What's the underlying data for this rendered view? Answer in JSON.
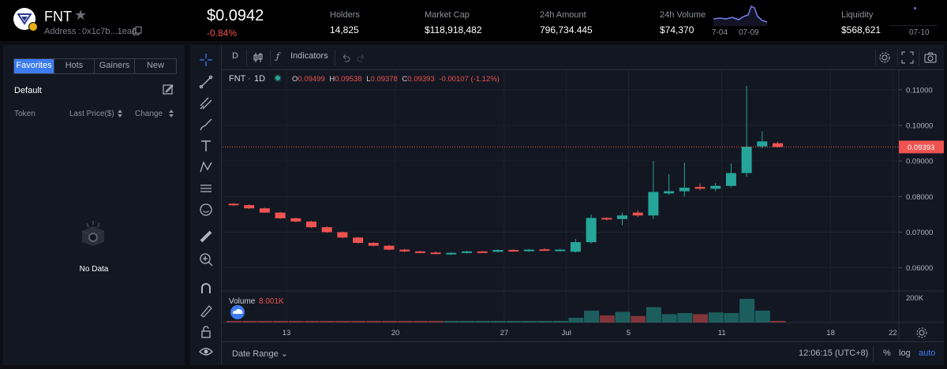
{
  "token": {
    "symbol": "FNT",
    "address_label": "Address :",
    "address": "0x1c7b...1ead",
    "price": "$0.0942",
    "change": "-0.84%"
  },
  "stats": [
    {
      "label": "Holders",
      "value": "14,825"
    },
    {
      "label": "Market Cap",
      "value": "$118,918,482"
    },
    {
      "label": "24h Amount",
      "value": "796,734.445"
    },
    {
      "label": "24h Volume",
      "value": "$74,370"
    },
    {
      "label": "Liquidity",
      "value": "$568,621"
    }
  ],
  "sparkline": {
    "start_date": "7-04",
    "end_date": "07-09"
  },
  "liquidity_date": "07-10",
  "left_panel": {
    "tabs": [
      "Favorites",
      "Hots",
      "Gainers",
      "New"
    ],
    "active_tab": "Favorites",
    "list_name": "Default",
    "columns": [
      "Token",
      "Last Price($)",
      "Change"
    ],
    "empty_text": "No Data"
  },
  "chart_toolbar": {
    "interval": "D",
    "indicators": "Indicators"
  },
  "legend": {
    "symbol": "FNT",
    "interval": "1D",
    "o_label": "O",
    "o": "0.09499",
    "h_label": "H",
    "h": "0.09538",
    "l_label": "L",
    "l": "0.09378",
    "c_label": "C",
    "c": "0.09393",
    "diff": "-0.00107 (-1.12%)"
  },
  "volume_legend": {
    "label": "Volume",
    "value": "8.001K"
  },
  "current_price_tag": "0.09393",
  "bottom": {
    "date_range": "Date Range",
    "time": "12:06:15 (UTC+8)",
    "pct": "%",
    "log": "log",
    "auto": "auto"
  },
  "colors": {
    "up": "#26a69a",
    "down": "#ef5350",
    "accent": "#3d7bf0"
  },
  "chart_data": {
    "type": "candlestick",
    "y_axis_labels": [
      "0.11000",
      "0.10000",
      "0.09000",
      "0.08000",
      "0.07000",
      "0.06000"
    ],
    "y_range": [
      0.0535,
      0.1155
    ],
    "volume_axis_label": "200K",
    "x_axis_labels": [
      {
        "i": 3,
        "label": "13"
      },
      {
        "i": 10,
        "label": "20"
      },
      {
        "i": 17,
        "label": "27"
      },
      {
        "i": 21,
        "label": "Jul"
      },
      {
        "i": 25,
        "label": "5"
      },
      {
        "i": 31,
        "label": "11"
      },
      {
        "i": 38,
        "label": "18"
      },
      {
        "i": 42,
        "label": "22"
      }
    ],
    "candles": [
      {
        "o": 0.078,
        "h": 0.0782,
        "l": 0.0774,
        "c": 0.0776,
        "v": 8
      },
      {
        "o": 0.0776,
        "h": 0.0778,
        "l": 0.0765,
        "c": 0.0767,
        "v": 8
      },
      {
        "o": 0.0767,
        "h": 0.0769,
        "l": 0.0754,
        "c": 0.0755,
        "v": 8
      },
      {
        "o": 0.0755,
        "h": 0.0757,
        "l": 0.0737,
        "c": 0.0739,
        "v": 8
      },
      {
        "o": 0.0739,
        "h": 0.0741,
        "l": 0.0728,
        "c": 0.073,
        "v": 8
      },
      {
        "o": 0.073,
        "h": 0.0732,
        "l": 0.0712,
        "c": 0.0714,
        "v": 8
      },
      {
        "o": 0.0714,
        "h": 0.0716,
        "l": 0.0698,
        "c": 0.07,
        "v": 8
      },
      {
        "o": 0.07,
        "h": 0.0702,
        "l": 0.0683,
        "c": 0.0685,
        "v": 8
      },
      {
        "o": 0.0685,
        "h": 0.0687,
        "l": 0.0668,
        "c": 0.067,
        "v": 8
      },
      {
        "o": 0.067,
        "h": 0.0672,
        "l": 0.066,
        "c": 0.0662,
        "v": 8
      },
      {
        "o": 0.0662,
        "h": 0.0664,
        "l": 0.0649,
        "c": 0.0651,
        "v": 8
      },
      {
        "o": 0.0651,
        "h": 0.0653,
        "l": 0.0644,
        "c": 0.0646,
        "v": 8
      },
      {
        "o": 0.0646,
        "h": 0.0648,
        "l": 0.0641,
        "c": 0.0643,
        "v": 8
      },
      {
        "o": 0.0643,
        "h": 0.0646,
        "l": 0.0638,
        "c": 0.064,
        "v": 8
      },
      {
        "o": 0.0638,
        "h": 0.0644,
        "l": 0.0636,
        "c": 0.0642,
        "v": 10
      },
      {
        "o": 0.0642,
        "h": 0.0648,
        "l": 0.064,
        "c": 0.0646,
        "v": 10
      },
      {
        "o": 0.0646,
        "h": 0.0648,
        "l": 0.0643,
        "c": 0.0645,
        "v": 10
      },
      {
        "o": 0.0645,
        "h": 0.0652,
        "l": 0.0643,
        "c": 0.065,
        "v": 12
      },
      {
        "o": 0.065,
        "h": 0.0652,
        "l": 0.0646,
        "c": 0.0648,
        "v": 12
      },
      {
        "o": 0.0648,
        "h": 0.0653,
        "l": 0.0645,
        "c": 0.0651,
        "v": 12
      },
      {
        "o": 0.0652,
        "h": 0.0655,
        "l": 0.0648,
        "c": 0.065,
        "v": 12
      },
      {
        "o": 0.065,
        "h": 0.0653,
        "l": 0.0647,
        "c": 0.0651,
        "v": 12
      },
      {
        "o": 0.0645,
        "h": 0.0681,
        "l": 0.0643,
        "c": 0.0672,
        "v": 40
      },
      {
        "o": 0.0672,
        "h": 0.075,
        "l": 0.0668,
        "c": 0.074,
        "v": 100
      },
      {
        "o": 0.074,
        "h": 0.0742,
        "l": 0.0733,
        "c": 0.0737,
        "v": 60
      },
      {
        "o": 0.0737,
        "h": 0.0755,
        "l": 0.072,
        "c": 0.0747,
        "v": 90
      },
      {
        "o": 0.0755,
        "h": 0.0762,
        "l": 0.0742,
        "c": 0.0747,
        "v": 55
      },
      {
        "o": 0.0747,
        "h": 0.09,
        "l": 0.0737,
        "c": 0.0813,
        "v": 130
      },
      {
        "o": 0.0809,
        "h": 0.0863,
        "l": 0.0805,
        "c": 0.0815,
        "v": 70
      },
      {
        "o": 0.0815,
        "h": 0.0895,
        "l": 0.08,
        "c": 0.0825,
        "v": 80
      },
      {
        "o": 0.0827,
        "h": 0.0837,
        "l": 0.0818,
        "c": 0.0822,
        "v": 70
      },
      {
        "o": 0.0822,
        "h": 0.0838,
        "l": 0.0815,
        "c": 0.083,
        "v": 85
      },
      {
        "o": 0.083,
        "h": 0.0893,
        "l": 0.0826,
        "c": 0.0866,
        "v": 80
      },
      {
        "o": 0.0866,
        "h": 0.1111,
        "l": 0.0856,
        "c": 0.094,
        "v": 200
      },
      {
        "o": 0.0941,
        "h": 0.0983,
        "l": 0.0936,
        "c": 0.0955,
        "v": 100
      },
      {
        "o": 0.09499,
        "h": 0.09538,
        "l": 0.09378,
        "c": 0.09393,
        "v": 8
      }
    ],
    "volume_colors": [
      "down",
      "down",
      "down",
      "down",
      "down",
      "down",
      "down",
      "down",
      "down",
      "down",
      "down",
      "down",
      "down",
      "down",
      "up",
      "up",
      "up",
      "up",
      "up",
      "up",
      "up",
      "up",
      "up",
      "up",
      "down",
      "up",
      "down",
      "up",
      "up",
      "up",
      "down",
      "up",
      "up",
      "up",
      "up",
      "down"
    ]
  }
}
